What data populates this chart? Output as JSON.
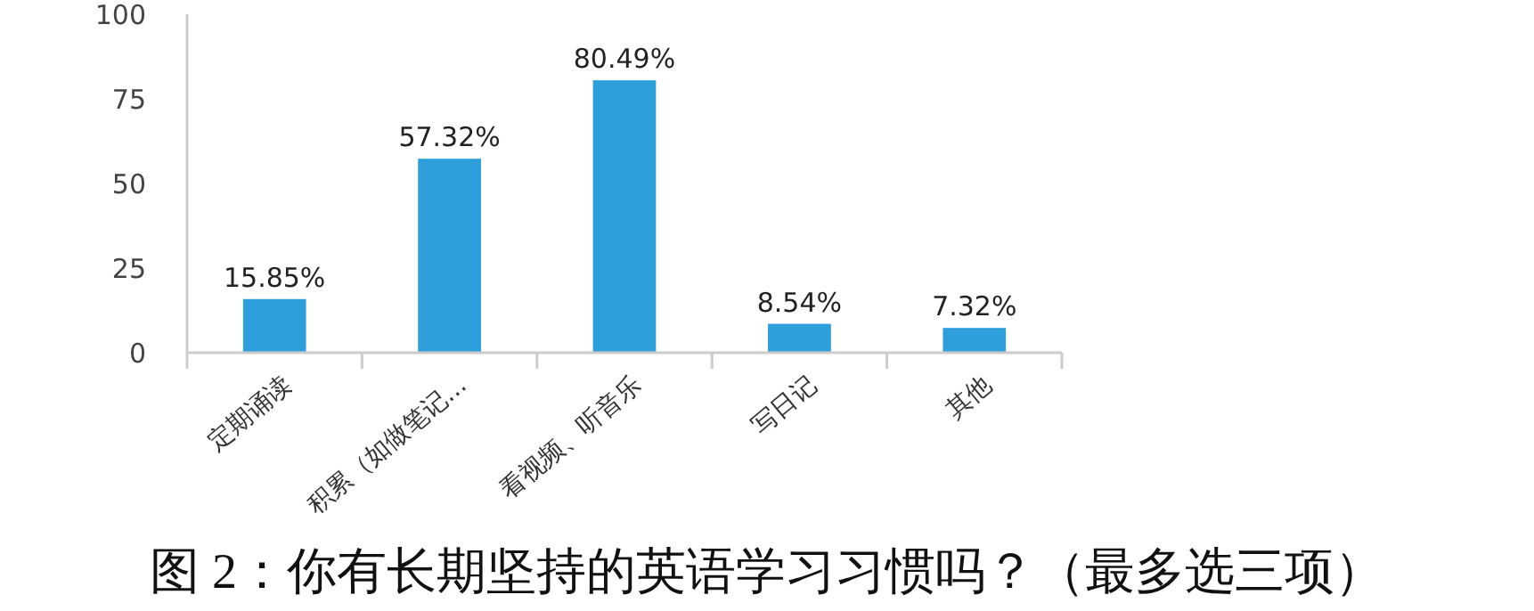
{
  "chart_data": {
    "type": "bar",
    "title": "图 2：你有长期坚持的英语学习习惯吗？（最多选三项）",
    "categories": [
      "定期诵读",
      "积累（如做笔记...",
      "看视频、听音乐",
      "写日记",
      "其他"
    ],
    "values": [
      15.85,
      57.32,
      80.49,
      8.54,
      7.32
    ],
    "color": "#2e9fdb",
    "value_labels": [
      "15.85%",
      "57.32%",
      "80.49%",
      "8.54%",
      "7.32%"
    ],
    "ylim": [
      0,
      100
    ],
    "yticks": [
      0,
      25,
      50,
      75,
      100
    ],
    "grid": false
  }
}
